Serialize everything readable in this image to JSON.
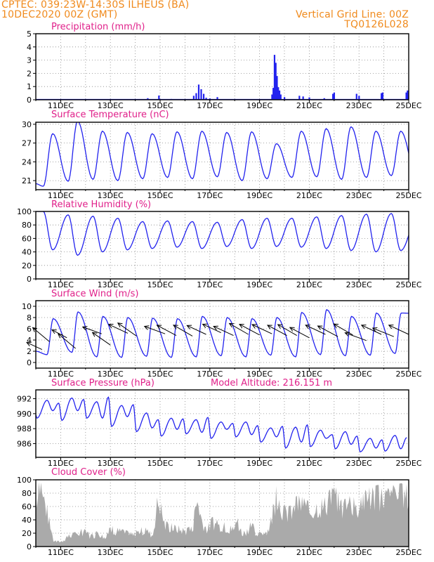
{
  "header": {
    "station_line": "CPTEC:   039:23W-14:30S   ILHEUS (BA)",
    "date_line": "10DEC2020 00Z (GMT)",
    "grid_line": "Vertical Grid Line: 00Z",
    "run_code": "TQ0126L028"
  },
  "colors": {
    "header": "#f08a1c",
    "title": "#e0208a",
    "line": "#2222ee",
    "cloud": "#aaaaaa"
  },
  "chart_data": [
    {
      "type": "bar",
      "title": "Precipitation (mm/h)",
      "xlabels": [
        "11DEC",
        "13DEC",
        "15DEC",
        "17DEC",
        "19DEC",
        "21DEC",
        "23DEC",
        "25DEC"
      ],
      "x_unit": "days since 10DEC2020 00Z",
      "x_range": [
        0,
        15
      ],
      "ylim": [
        0,
        5
      ],
      "yticks": [
        "0",
        "1",
        "2",
        "3",
        "4",
        "5"
      ],
      "grid": "dotted",
      "spikes": [
        [
          1.1,
          0.05
        ],
        [
          2.0,
          0.05
        ],
        [
          3.0,
          0.05
        ],
        [
          4.5,
          0.12
        ],
        [
          4.95,
          0.32
        ],
        [
          5.45,
          0.06
        ],
        [
          6.35,
          0.3
        ],
        [
          6.45,
          0.5
        ],
        [
          6.55,
          1.15
        ],
        [
          6.65,
          0.8
        ],
        [
          6.75,
          0.45
        ],
        [
          6.85,
          0.15
        ],
        [
          7.0,
          0.1
        ],
        [
          7.3,
          0.2
        ],
        [
          8.0,
          0.05
        ],
        [
          9.5,
          0.4
        ],
        [
          9.55,
          0.9
        ],
        [
          9.6,
          3.4
        ],
        [
          9.65,
          2.8
        ],
        [
          9.7,
          1.8
        ],
        [
          9.75,
          0.95
        ],
        [
          9.8,
          0.7
        ],
        [
          9.85,
          0.4
        ],
        [
          10.0,
          0.2
        ],
        [
          10.6,
          0.3
        ],
        [
          10.75,
          0.25
        ],
        [
          11.0,
          0.18
        ],
        [
          11.6,
          0.12
        ],
        [
          11.95,
          0.45
        ],
        [
          12.0,
          0.55
        ],
        [
          12.9,
          0.45
        ],
        [
          13.0,
          0.3
        ],
        [
          13.9,
          0.5
        ],
        [
          13.95,
          0.55
        ],
        [
          14.9,
          0.55
        ],
        [
          14.95,
          0.7
        ],
        [
          15.0,
          0.2
        ]
      ]
    },
    {
      "type": "line",
      "title": "Surface Temperature (nC)",
      "xlabels": [
        "11DEC",
        "13DEC",
        "15DEC",
        "17DEC",
        "19DEC",
        "21DEC",
        "23DEC",
        "25DEC"
      ],
      "x_range": [
        0,
        15
      ],
      "ylim": [
        20,
        31
      ],
      "yticks": [
        "21",
        "24",
        "27",
        "30"
      ],
      "grid": "dotted",
      "daily_min": [
        20.1,
        20.9,
        21.2,
        21.0,
        21.3,
        21.5,
        21.3,
        21.6,
        21.0,
        21.3,
        21.5,
        21.6,
        21.2,
        21.5,
        21.8,
        22.2
      ],
      "daily_max": [
        28.5,
        30.5,
        28.9,
        28.7,
        28.5,
        28.8,
        28.9,
        28.7,
        28.8,
        26.9,
        28.9,
        29.3,
        29.6,
        28.9,
        28.9
      ]
    },
    {
      "type": "line",
      "title": "Relative Humidity (%)",
      "xlabels": [
        "11DEC",
        "13DEC",
        "15DEC",
        "17DEC",
        "19DEC",
        "21DEC",
        "23DEC",
        "25DEC"
      ],
      "x_range": [
        0,
        15
      ],
      "ylim": [
        0,
        100
      ],
      "yticks": [
        "0",
        "20",
        "40",
        "60",
        "80",
        "100"
      ],
      "grid": "dotted",
      "daily_max": [
        100,
        95,
        93,
        90,
        85,
        86,
        85,
        84,
        88,
        90,
        90,
        92,
        94,
        96,
        97,
        85
      ],
      "daily_min": [
        43,
        35,
        40,
        43,
        45,
        47,
        45,
        48,
        45,
        48,
        47,
        45,
        42,
        40,
        42
      ]
    },
    {
      "type": "line",
      "title": "Surface Wind (m/s)",
      "xlabels": [
        "11DEC",
        "13DEC",
        "15DEC",
        "17DEC",
        "19DEC",
        "21DEC",
        "23DEC",
        "25DEC"
      ],
      "x_range": [
        0,
        15
      ],
      "ylim": [
        0,
        10
      ],
      "yticks": [
        "0",
        "2",
        "4",
        "6",
        "8",
        "10"
      ],
      "grid": "dotted",
      "daily_max": [
        7.8,
        9.0,
        8.2,
        8.0,
        7.9,
        7.8,
        8.2,
        8.0,
        7.8,
        8.0,
        8.9,
        9.4,
        8.2,
        8.8,
        8.8,
        8.6
      ],
      "daily_min": [
        1.4,
        1.8,
        1.0,
        0.9,
        1.1,
        0.9,
        1.0,
        1.2,
        1.0,
        1.3,
        1.0,
        1.4,
        1.2,
        1.3,
        1.6
      ],
      "arrows": [
        [
          0.25,
          2.3,
          -25,
          2.0
        ],
        [
          0.55,
          3.7,
          -40,
          2.6
        ],
        [
          1.25,
          4.4,
          -28,
          2.0
        ],
        [
          1.6,
          2.5,
          -40,
          2.7
        ],
        [
          2.65,
          5.1,
          -20,
          2.4
        ],
        [
          3.0,
          3.1,
          -35,
          2.6
        ],
        [
          3.7,
          5.2,
          -25,
          2.5
        ],
        [
          4.05,
          4.7,
          -35,
          2.7
        ],
        [
          5.2,
          5.1,
          -20,
          2.6
        ],
        [
          5.65,
          4.8,
          -28,
          2.6
        ],
        [
          6.3,
          4.7,
          -30,
          2.6
        ],
        [
          6.85,
          5.0,
          -25,
          2.5
        ],
        [
          7.45,
          5.3,
          -25,
          2.4
        ],
        [
          7.95,
          4.8,
          -25,
          2.6
        ],
        [
          8.55,
          5.0,
          -30,
          2.6
        ],
        [
          9.0,
          4.9,
          -28,
          2.7
        ],
        [
          9.5,
          5.1,
          -25,
          2.6
        ],
        [
          10.1,
          4.8,
          -28,
          2.6
        ],
        [
          10.5,
          4.8,
          -30,
          2.6
        ],
        [
          11.0,
          4.4,
          -28,
          2.6
        ],
        [
          11.65,
          5.0,
          -25,
          2.6
        ],
        [
          12.15,
          4.6,
          -28,
          2.7
        ],
        [
          12.75,
          4.9,
          -30,
          2.6
        ],
        [
          13.3,
          3.9,
          -20,
          2.7
        ],
        [
          13.9,
          5.0,
          -25,
          2.6
        ],
        [
          14.4,
          4.6,
          -22,
          2.7
        ],
        [
          15.0,
          5.0,
          -25,
          2.6
        ]
      ]
    },
    {
      "type": "line",
      "title": "Surface Pressure (hPa)",
      "subtitle": "Model Altitude: 216.151  m",
      "xlabels": [
        "11DEC",
        "13DEC",
        "15DEC",
        "17DEC",
        "19DEC",
        "21DEC",
        "23DEC",
        "25DEC"
      ],
      "x_range": [
        0,
        15
      ],
      "ylim": [
        985.2,
        992.8
      ],
      "yticks": [
        "986",
        "988",
        "990",
        "992"
      ],
      "grid": "dotted",
      "daily_max_a": [
        991.8,
        992.1,
        991.6,
        991.1,
        990.1,
        989.4,
        989.2,
        988.9,
        988.9,
        988.1,
        988.2,
        987.8,
        987.6,
        986.7,
        987.1
      ],
      "daily_min_a": [
        990.4,
        990.4,
        989.4,
        989.6,
        988.1,
        987.9,
        987.5,
        987.9,
        987.2,
        986.9,
        986.2,
        986.7,
        985.9,
        985.4,
        985.3
      ],
      "daily_max_b": [
        991.4,
        991.9,
        992.2,
        991.2,
        989.2,
        989.3,
        989.5,
        988.7,
        988.4,
        988.3,
        988.5,
        987.2,
        987.0,
        986.5,
        986.8
      ],
      "daily_min_b": [
        989.4,
        989.1,
        989.4,
        988.3,
        987.6,
        987.0,
        987.3,
        986.7,
        986.9,
        986.2,
        985.4,
        985.6,
        985.3,
        984.9,
        985.0
      ]
    },
    {
      "type": "area",
      "title": "Cloud Cover (%)",
      "xlabels": [
        "11DEC",
        "13DEC",
        "15DEC",
        "17DEC",
        "19DEC",
        "21DEC",
        "23DEC",
        "25DEC"
      ],
      "x_range": [
        0,
        15
      ],
      "ylim": [
        0,
        100
      ],
      "yticks": [
        "0",
        "20",
        "40",
        "60",
        "80",
        "100"
      ],
      "grid": "dotted",
      "envelope": [
        [
          0,
          98
        ],
        [
          0.3,
          95
        ],
        [
          0.5,
          55
        ],
        [
          0.7,
          10
        ],
        [
          1.0,
          8
        ],
        [
          1.3,
          18
        ],
        [
          1.6,
          22
        ],
        [
          1.9,
          28
        ],
        [
          2.1,
          22
        ],
        [
          2.3,
          18
        ],
        [
          2.5,
          26
        ],
        [
          2.8,
          15
        ],
        [
          3.0,
          32
        ],
        [
          3.3,
          28
        ],
        [
          3.6,
          25
        ],
        [
          3.9,
          20
        ],
        [
          4.2,
          30
        ],
        [
          4.5,
          28
        ],
        [
          4.7,
          20
        ],
        [
          4.9,
          85
        ],
        [
          5.0,
          78
        ],
        [
          5.2,
          38
        ],
        [
          5.5,
          35
        ],
        [
          5.8,
          32
        ],
        [
          6.1,
          28
        ],
        [
          6.3,
          33
        ],
        [
          6.5,
          88
        ],
        [
          6.7,
          45
        ],
        [
          6.9,
          32
        ],
        [
          7.1,
          45
        ],
        [
          7.3,
          40
        ],
        [
          7.5,
          38
        ],
        [
          7.7,
          35
        ],
        [
          7.9,
          30
        ],
        [
          8.1,
          45
        ],
        [
          8.3,
          25
        ],
        [
          8.5,
          30
        ],
        [
          8.7,
          40
        ],
        [
          8.9,
          15
        ],
        [
          9.1,
          30
        ],
        [
          9.3,
          20
        ],
        [
          9.5,
          55
        ],
        [
          9.7,
          98
        ],
        [
          9.9,
          70
        ],
        [
          10.1,
          60
        ],
        [
          10.3,
          62
        ],
        [
          10.5,
          78
        ],
        [
          10.7,
          75
        ],
        [
          10.9,
          70
        ],
        [
          11.1,
          65
        ],
        [
          11.3,
          75
        ],
        [
          11.5,
          72
        ],
        [
          11.7,
          80
        ],
        [
          11.9,
          88
        ],
        [
          12.1,
          90
        ],
        [
          12.3,
          70
        ],
        [
          12.5,
          72
        ],
        [
          12.7,
          78
        ],
        [
          12.9,
          70
        ],
        [
          13.1,
          75
        ],
        [
          13.3,
          90
        ],
        [
          13.5,
          88
        ],
        [
          13.7,
          92
        ],
        [
          13.9,
          93
        ],
        [
          14.1,
          95
        ],
        [
          14.3,
          92
        ],
        [
          14.5,
          93
        ],
        [
          14.7,
          95
        ],
        [
          15,
          94
        ]
      ]
    }
  ]
}
